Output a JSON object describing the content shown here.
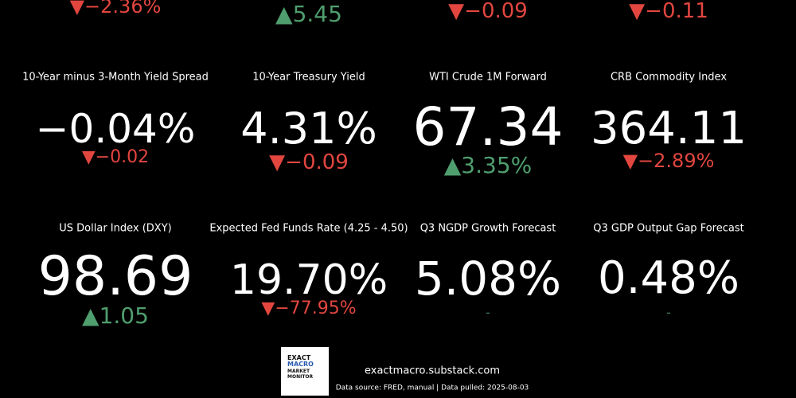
{
  "top_row": [
    {
      "change": "▼−2.36%",
      "color": "#e2463f"
    },
    {
      "change": "▲5.45",
      "color": "#4f9e6e"
    },
    {
      "change": "▼−0.09",
      "color": "#e2463f"
    },
    {
      "change": "▼−0.11",
      "color": "#e2463f"
    }
  ],
  "tiles": [
    {
      "title": "10-Year minus 3-Month Yield Spread",
      "value": "−0.04%",
      "change": "▼−0.02",
      "color": "#e2463f"
    },
    {
      "title": "10-Year Treasury Yield",
      "value": "4.31%",
      "change": "▼−0.09",
      "color": "#e2463f"
    },
    {
      "title": "WTI Crude 1M Forward",
      "value": "67.34",
      "change": "▲3.35%",
      "color": "#4f9e6e"
    },
    {
      "title": "CRB Commodity Index",
      "value": "364.11",
      "change": "▼−2.89%",
      "color": "#e2463f"
    },
    {
      "title": "US Dollar Index (DXY)",
      "value": "98.69",
      "change": "▲1.05",
      "color": "#4f9e6e"
    },
    {
      "title": "Expected Fed Funds Rate (4.25 - 4.50)",
      "value": "19.70%",
      "change": "▼−77.95%",
      "color": "#e2463f"
    },
    {
      "title": "Q3 NGDP Growth Forecast",
      "value": "5.08%",
      "change": "-",
      "color": "#3f7d5c"
    },
    {
      "title": "Q3 GDP Output Gap Forecast",
      "value": "0.48%",
      "change": "-",
      "color": "#3f7d5c"
    }
  ],
  "footer": {
    "logo": [
      "EXACT",
      "MACRO",
      "MARKET",
      "MONITOR"
    ],
    "site": "exactmacro.substack.com",
    "source": "Data source: FRED, manual | Data pulled: 2025-08-03"
  }
}
